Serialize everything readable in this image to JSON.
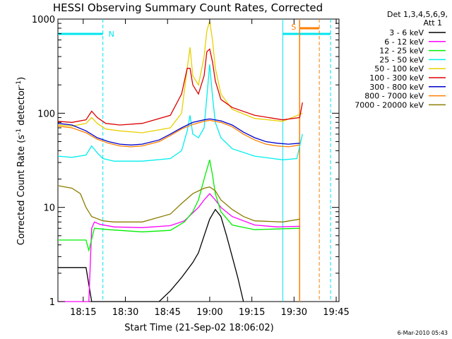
{
  "chart_data": {
    "type": "line",
    "title": "HESSI Observing Summary Count Rates, Corrected",
    "xlabel": "Start Time (21-Sep-02 18:06:02)",
    "ylabel": "Corrected Count Rate (s",
    "ylabel_sup1": "-1",
    "ylabel_mid": " detector",
    "ylabel_sup2": "-1",
    "ylabel_end": ")",
    "y_scale": "log",
    "ylim": [
      1,
      1000
    ],
    "xlim_minutes": [
      0,
      100
    ],
    "x_ticks": [
      {
        "label": "18:15",
        "t": 9
      },
      {
        "label": "18:30",
        "t": 24
      },
      {
        "label": "18:45",
        "t": 39
      },
      {
        "label": "19:00",
        "t": 54
      },
      {
        "label": "19:15",
        "t": 69
      },
      {
        "label": "19:30",
        "t": 84
      },
      {
        "label": "19:45",
        "t": 99
      }
    ],
    "y_ticks": [
      {
        "label": "1",
        "v": 1
      },
      {
        "label": "10",
        "v": 10
      },
      {
        "label": "100",
        "v": 100
      },
      {
        "label": "1000",
        "v": 1000
      }
    ],
    "legend_header": [
      "Det 1,3,4,5,6,9,",
      "Att 1"
    ],
    "annotations": {
      "night_label": "N",
      "saa_label": "S",
      "timestamp": "6-Mar-2010 05:43"
    },
    "colors": {
      "night_bar": "#00e5ee",
      "saa_bar": "#ff7f00",
      "flare_peak_color": "#e8d000"
    },
    "series": [
      {
        "name": "3 - 6 keV",
        "color": "#000000",
        "x": [
          0,
          10,
          12,
          16,
          36,
          40,
          44,
          48,
          50,
          52,
          54,
          56,
          58,
          60,
          62,
          64,
          66
        ],
        "y": [
          2.3,
          2.3,
          1.0,
          1.0,
          1.0,
          1.3,
          1.8,
          2.6,
          3.3,
          5.0,
          7.5,
          9.5,
          8.0,
          5.0,
          3.0,
          1.8,
          1.0
        ]
      },
      {
        "name": "6 - 12 keV",
        "color": "#ff00ff",
        "x": [
          0,
          11,
          12,
          13,
          15,
          20,
          30,
          40,
          45,
          50,
          52,
          54,
          56,
          58,
          62,
          70,
          78,
          86
        ],
        "y": [
          1.0,
          1.0,
          6.0,
          7.0,
          6.6,
          6.2,
          6.1,
          6.4,
          7.2,
          10,
          12,
          14,
          12,
          10,
          8.0,
          6.5,
          6.2,
          6.3
        ]
      },
      {
        "name": "12 - 25 keV",
        "color": "#00ee00",
        "x": [
          0,
          10,
          11,
          13,
          18,
          30,
          40,
          45,
          48,
          50,
          52,
          54,
          55,
          56,
          58,
          62,
          70,
          86
        ],
        "y": [
          4.5,
          4.5,
          3.5,
          6.0,
          5.8,
          5.5,
          5.7,
          7.0,
          9.0,
          12,
          20,
          32,
          22,
          14,
          9.0,
          6.5,
          5.8,
          6.0
        ]
      },
      {
        "name": "25 - 50 keV",
        "color": "#00eeee",
        "x": [
          0,
          5,
          10,
          12,
          14,
          16,
          20,
          30,
          40,
          44,
          46,
          47,
          48,
          50,
          52,
          53,
          54,
          55,
          56,
          58,
          62,
          70,
          80,
          85,
          87
        ],
        "y": [
          35,
          34,
          36,
          45,
          38,
          33,
          31,
          31,
          33,
          40,
          65,
          95,
          60,
          55,
          70,
          150,
          330,
          150,
          80,
          55,
          42,
          35,
          32,
          33,
          60
        ]
      },
      {
        "name": "50 - 100 keV",
        "color": "#e8d000",
        "x": [
          0,
          5,
          10,
          12,
          14,
          17,
          22,
          30,
          40,
          44,
          46,
          47,
          48,
          50,
          52,
          53,
          54,
          55,
          56,
          58,
          62,
          70,
          80,
          87
        ],
        "y": [
          75,
          73,
          78,
          90,
          78,
          68,
          65,
          62,
          70,
          100,
          300,
          500,
          250,
          200,
          400,
          750,
          950,
          600,
          300,
          160,
          110,
          88,
          82,
          100
        ]
      },
      {
        "name": "100 - 300 keV",
        "color": "#dd0000",
        "x": [
          0,
          5,
          10,
          12,
          14,
          17,
          22,
          30,
          40,
          44,
          46,
          47,
          48,
          50,
          52,
          53,
          54,
          55,
          56,
          58,
          62,
          70,
          80,
          86,
          87
        ],
        "y": [
          82,
          80,
          85,
          105,
          90,
          78,
          75,
          78,
          95,
          160,
          300,
          300,
          200,
          160,
          250,
          450,
          480,
          350,
          220,
          140,
          115,
          95,
          85,
          90,
          130
        ]
      },
      {
        "name": "300 - 800 keV",
        "color": "#0000cc",
        "x": [
          0,
          5,
          10,
          14,
          18,
          22,
          26,
          30,
          36,
          40,
          44,
          48,
          52,
          54,
          58,
          62,
          66,
          70,
          74,
          78,
          82,
          86
        ],
        "y": [
          78,
          75,
          65,
          55,
          50,
          47,
          46,
          47,
          52,
          60,
          70,
          80,
          85,
          87,
          83,
          75,
          63,
          55,
          50,
          48,
          47,
          48
        ]
      },
      {
        "name": "800 - 7000 keV",
        "color": "#ff7f00",
        "x": [
          0,
          5,
          10,
          14,
          18,
          22,
          26,
          30,
          36,
          40,
          44,
          48,
          52,
          54,
          58,
          62,
          66,
          70,
          74,
          78,
          82,
          86
        ],
        "y": [
          73,
          70,
          62,
          53,
          48,
          45,
          44,
          45,
          50,
          58,
          68,
          76,
          82,
          84,
          80,
          72,
          60,
          52,
          47,
          45,
          44,
          46
        ]
      },
      {
        "name": "7000 - 20000 keV",
        "color": "#8b7d00",
        "x": [
          0,
          5,
          8,
          10,
          12,
          16,
          20,
          30,
          40,
          44,
          48,
          52,
          54,
          56,
          58,
          62,
          66,
          70,
          80,
          86
        ],
        "y": [
          17,
          16,
          14,
          10,
          8.0,
          7.2,
          7.0,
          7.0,
          8.5,
          11,
          14,
          16,
          16.5,
          15,
          12,
          9.5,
          8.0,
          7.2,
          7.0,
          7.5
        ]
      }
    ]
  }
}
